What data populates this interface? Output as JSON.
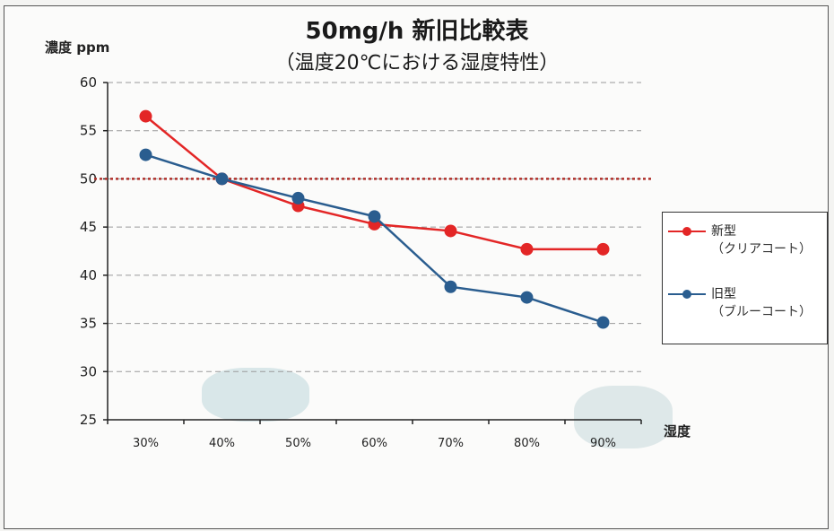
{
  "chart_data": {
    "type": "line",
    "title": "50mg/h 新旧比較表",
    "subtitle": "（温度20℃における湿度特性）",
    "ylabel": "濃度 ppm",
    "xlabel": "湿度",
    "categories": [
      "30%",
      "40%",
      "50%",
      "60%",
      "70%",
      "80%",
      "90%"
    ],
    "ylim": [
      25,
      60
    ],
    "yticks": [
      25,
      30,
      35,
      40,
      45,
      50,
      55,
      60
    ],
    "reference_line": 50,
    "grid": true,
    "legend_position": "right",
    "series": [
      {
        "name": "新型",
        "subname": "（クリアコート）",
        "color": "#e32626",
        "values": [
          56.5,
          50,
          47.2,
          45.3,
          44.6,
          42.7,
          42.7
        ]
      },
      {
        "name": "旧型",
        "subname": "（ブルーコート）",
        "color": "#2a5d8f",
        "values": [
          52.5,
          50,
          48,
          46.1,
          38.8,
          37.7,
          35.1
        ]
      }
    ],
    "reference_color": "#b0302a"
  }
}
